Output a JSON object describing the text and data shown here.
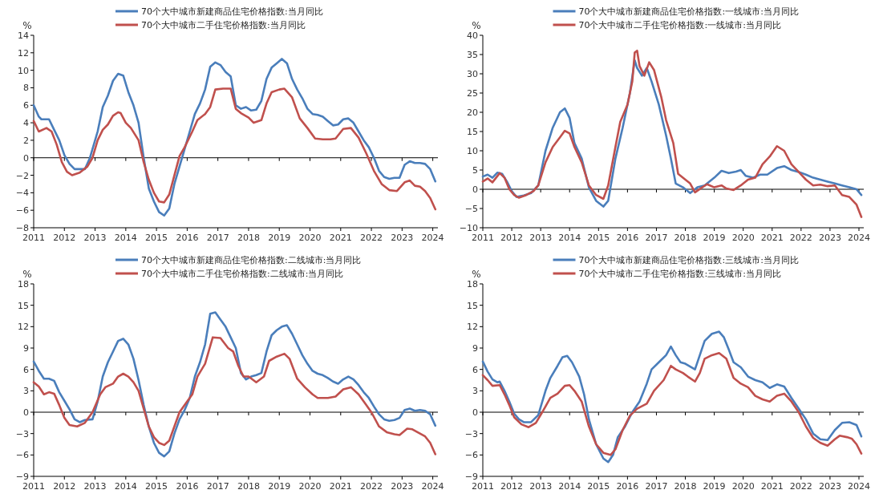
{
  "chart_data": [
    {
      "type": "line",
      "ylabel": "%",
      "legend": "top",
      "xlim": [
        "2011-01",
        "2024-03"
      ],
      "xticks": [
        "2011",
        "2012",
        "2013",
        "2014",
        "2015",
        "2016",
        "2017",
        "2018",
        "2019",
        "2020",
        "2021",
        "2022",
        "2023",
        "2024"
      ],
      "ylim": [
        -8,
        14
      ],
      "yticks": [
        -8,
        -6,
        -4,
        -2,
        0,
        2,
        4,
        6,
        8,
        10,
        12,
        14
      ],
      "series": [
        {
          "name": "70个大中城市新建商品住宅价格指数:当月同比",
          "color": "#4a7ebb",
          "x": [
            "2011-01",
            "2011-03",
            "2011-04",
            "2011-07",
            "2011-09",
            "2011-11",
            "2012-01",
            "2012-03",
            "2012-05",
            "2012-09",
            "2012-11",
            "2013-02",
            "2013-04",
            "2013-06",
            "2013-08",
            "2013-10",
            "2013-12",
            "2014-02",
            "2014-04",
            "2014-06",
            "2014-08",
            "2014-10",
            "2014-12",
            "2015-02",
            "2015-04",
            "2015-06",
            "2015-08",
            "2015-10",
            "2015-12",
            "2016-02",
            "2016-04",
            "2016-06",
            "2016-08",
            "2016-10",
            "2016-12",
            "2017-02",
            "2017-04",
            "2017-06",
            "2017-08",
            "2017-10",
            "2017-12",
            "2018-02",
            "2018-04",
            "2018-06",
            "2018-08",
            "2018-10",
            "2018-12",
            "2019-02",
            "2019-04",
            "2019-06",
            "2019-08",
            "2019-10",
            "2019-12",
            "2020-02",
            "2020-04",
            "2020-06",
            "2020-08",
            "2020-10",
            "2020-12",
            "2021-02",
            "2021-04",
            "2021-06",
            "2021-08",
            "2021-10",
            "2021-12",
            "2022-02",
            "2022-04",
            "2022-06",
            "2022-08",
            "2022-10",
            "2022-12",
            "2023-02",
            "2023-04",
            "2023-06",
            "2023-08",
            "2023-10",
            "2023-12",
            "2024-02"
          ],
          "values": [
            6.0,
            4.7,
            4.4,
            4.4,
            3.2,
            2.0,
            0.3,
            -0.7,
            -1.3,
            -1.3,
            0.0,
            3.0,
            5.8,
            7.1,
            8.8,
            9.6,
            9.4,
            7.5,
            6.0,
            4.0,
            0.0,
            -3.5,
            -5.0,
            -6.2,
            -6.6,
            -5.8,
            -3.0,
            -1.0,
            1.0,
            3.0,
            5.0,
            6.2,
            7.8,
            10.4,
            10.9,
            10.6,
            9.8,
            9.3,
            6.0,
            5.6,
            5.8,
            5.4,
            5.5,
            6.5,
            9.0,
            10.3,
            10.8,
            11.3,
            10.8,
            9.0,
            7.8,
            6.8,
            5.6,
            5.0,
            4.9,
            4.7,
            4.2,
            3.7,
            3.8,
            4.4,
            4.5,
            4.0,
            3.0,
            2.0,
            1.2,
            0.0,
            -1.5,
            -2.2,
            -2.4,
            -2.3,
            -2.3,
            -0.8,
            -0.4,
            -0.6,
            -0.6,
            -0.7,
            -1.3,
            -2.7
          ]
        },
        {
          "name": "70个大中城市二手住宅价格指数:当月同比",
          "color": "#c0504d",
          "x": [
            "2011-01",
            "2011-03",
            "2011-06",
            "2011-08",
            "2011-10",
            "2011-12",
            "2012-02",
            "2012-04",
            "2012-07",
            "2012-10",
            "2012-12",
            "2013-02",
            "2013-04",
            "2013-06",
            "2013-08",
            "2013-10",
            "2013-11",
            "2014-01",
            "2014-03",
            "2014-06",
            "2014-08",
            "2014-10",
            "2014-12",
            "2015-02",
            "2015-04",
            "2015-06",
            "2015-08",
            "2015-10",
            "2015-12",
            "2016-03",
            "2016-05",
            "2016-08",
            "2016-10",
            "2016-12",
            "2017-03",
            "2017-06",
            "2017-08",
            "2017-10",
            "2018-01",
            "2018-03",
            "2018-06",
            "2018-08",
            "2018-10",
            "2019-01",
            "2019-03",
            "2019-06",
            "2019-09",
            "2019-12",
            "2020-03",
            "2020-06",
            "2020-09",
            "2020-11",
            "2021-02",
            "2021-05",
            "2021-08",
            "2021-11",
            "2022-02",
            "2022-05",
            "2022-08",
            "2022-11",
            "2023-02",
            "2023-04",
            "2023-06",
            "2023-08",
            "2023-10",
            "2023-12",
            "2024-02"
          ],
          "values": [
            4.2,
            3.0,
            3.4,
            3.0,
            1.5,
            -0.5,
            -1.6,
            -2.0,
            -1.7,
            -1.0,
            0.0,
            2.0,
            3.2,
            3.8,
            4.8,
            5.2,
            5.1,
            4.0,
            3.4,
            2.0,
            -0.5,
            -2.5,
            -4.0,
            -5.0,
            -5.1,
            -4.2,
            -2.0,
            0.2,
            1.2,
            3.0,
            4.3,
            5.0,
            5.8,
            7.8,
            7.9,
            7.9,
            5.6,
            5.1,
            4.6,
            4.0,
            4.3,
            6.2,
            7.5,
            7.8,
            7.9,
            6.9,
            4.5,
            3.4,
            2.2,
            2.1,
            2.1,
            2.2,
            3.3,
            3.4,
            2.3,
            0.5,
            -1.5,
            -3.0,
            -3.7,
            -3.8,
            -2.8,
            -2.6,
            -3.2,
            -3.3,
            -3.8,
            -4.6,
            -5.9
          ]
        }
      ]
    },
    {
      "type": "line",
      "ylabel": "%",
      "legend": "top",
      "xlim": [
        "2011-01",
        "2024-03"
      ],
      "xticks": [
        "2011",
        "2012",
        "2013",
        "2014",
        "2015",
        "2016",
        "2017",
        "2018",
        "2019",
        "2020",
        "2021",
        "2022",
        "2023",
        "2024"
      ],
      "ylim": [
        -10,
        40
      ],
      "yticks": [
        -10,
        -5,
        0,
        5,
        10,
        15,
        20,
        25,
        30,
        35,
        40
      ],
      "series": [
        {
          "name": "70个大中城市新建商品住宅价格指数:一线城市:当月同比",
          "color": "#4a7ebb",
          "x": [
            "2011-01",
            "2011-03",
            "2011-05",
            "2011-07",
            "2011-09",
            "2011-11",
            "2012-01",
            "2012-03",
            "2012-06",
            "2012-09",
            "2012-12",
            "2013-03",
            "2013-06",
            "2013-09",
            "2013-11",
            "2014-01",
            "2014-03",
            "2014-06",
            "2014-09",
            "2014-12",
            "2015-03",
            "2015-05",
            "2015-08",
            "2015-11",
            "2016-02",
            "2016-04",
            "2016-05",
            "2016-07",
            "2016-09",
            "2016-11",
            "2017-02",
            "2017-05",
            "2017-07",
            "2017-09",
            "2017-12",
            "2018-03",
            "2018-06",
            "2018-09",
            "2019-01",
            "2019-04",
            "2019-07",
            "2019-10",
            "2019-12",
            "2020-02",
            "2020-05",
            "2020-08",
            "2020-11",
            "2021-03",
            "2021-06",
            "2021-09",
            "2021-12",
            "2022-03",
            "2022-06",
            "2022-09",
            "2022-12",
            "2023-03",
            "2023-06",
            "2023-09",
            "2023-12",
            "2024-02"
          ],
          "values": [
            3.3,
            3.8,
            3.0,
            4.3,
            4.0,
            2.0,
            -0.5,
            -2.0,
            -1.6,
            -1.0,
            1.0,
            10.0,
            16.0,
            20.0,
            21.0,
            18.5,
            12.0,
            8.0,
            0.5,
            -3.0,
            -4.5,
            -3.0,
            8.0,
            16.0,
            25.0,
            33.5,
            31.5,
            29.5,
            31.5,
            28.0,
            22.0,
            14.0,
            8.0,
            1.5,
            0.5,
            -1.0,
            0.5,
            1.0,
            3.0,
            4.8,
            4.2,
            4.6,
            5.0,
            3.5,
            3.0,
            3.8,
            3.8,
            5.5,
            6.0,
            5.0,
            4.5,
            3.8,
            3.0,
            2.5,
            2.0,
            1.5,
            1.0,
            0.5,
            0.0,
            -1.5
          ]
        },
        {
          "name": "70个大中城市二手住宅价格指数:一线城市:当月同比",
          "color": "#c0504d",
          "x": [
            "2011-01",
            "2011-03",
            "2011-05",
            "2011-08",
            "2011-10",
            "2011-12",
            "2012-02",
            "2012-04",
            "2012-07",
            "2012-10",
            "2012-12",
            "2013-03",
            "2013-06",
            "2013-09",
            "2013-11",
            "2014-01",
            "2014-03",
            "2014-06",
            "2014-09",
            "2014-12",
            "2015-03",
            "2015-05",
            "2015-08",
            "2015-10",
            "2016-01",
            "2016-03",
            "2016-04",
            "2016-05",
            "2016-06",
            "2016-08",
            "2016-10",
            "2016-12",
            "2017-03",
            "2017-05",
            "2017-08",
            "2017-10",
            "2018-01",
            "2018-03",
            "2018-05",
            "2018-08",
            "2018-10",
            "2019-01",
            "2019-04",
            "2019-06",
            "2019-09",
            "2019-12",
            "2020-03",
            "2020-06",
            "2020-09",
            "2020-12",
            "2021-03",
            "2021-06",
            "2021-09",
            "2021-12",
            "2022-03",
            "2022-06",
            "2022-09",
            "2022-12",
            "2023-03",
            "2023-06",
            "2023-09",
            "2023-12",
            "2024-02"
          ],
          "values": [
            2.0,
            2.8,
            1.8,
            4.2,
            3.0,
            0.0,
            -1.5,
            -2.2,
            -1.5,
            -0.5,
            1.0,
            7.0,
            11.0,
            13.5,
            15.2,
            14.5,
            11.0,
            7.0,
            1.0,
            -1.5,
            -2.5,
            1.0,
            11.0,
            17.5,
            22.0,
            28.0,
            35.5,
            36.0,
            32.0,
            29.5,
            33.0,
            31.0,
            24.0,
            18.0,
            12.0,
            4.0,
            2.5,
            1.5,
            -0.8,
            0.5,
            1.3,
            0.5,
            1.0,
            0.2,
            -0.2,
            1.0,
            2.5,
            3.0,
            6.5,
            8.5,
            11.2,
            10.0,
            6.5,
            4.5,
            2.5,
            1.0,
            1.2,
            0.8,
            1.0,
            -1.5,
            -2.0,
            -4.0,
            -7.2
          ]
        }
      ]
    },
    {
      "type": "line",
      "ylabel": "%",
      "legend": "top",
      "xlim": [
        "2011-01",
        "2024-03"
      ],
      "xticks": [
        "2011",
        "2012",
        "2013",
        "2014",
        "2015",
        "2016",
        "2017",
        "2018",
        "2019",
        "2020",
        "2021",
        "2022",
        "2023",
        "2024"
      ],
      "ylim": [
        -9,
        18
      ],
      "yticks": [
        -9,
        -6,
        -3,
        0,
        3,
        6,
        9,
        12,
        15,
        18
      ],
      "series": [
        {
          "name": "70个大中城市新建商品住宅价格指数:二线城市:当月同比",
          "color": "#4a7ebb",
          "x": [
            "2011-01",
            "2011-03",
            "2011-05",
            "2011-07",
            "2011-09",
            "2011-11",
            "2012-01",
            "2012-03",
            "2012-05",
            "2012-07",
            "2012-09",
            "2012-12",
            "2013-02",
            "2013-04",
            "2013-06",
            "2013-08",
            "2013-10",
            "2013-12",
            "2014-02",
            "2014-04",
            "2014-06",
            "2014-08",
            "2014-10",
            "2014-12",
            "2015-02",
            "2015-04",
            "2015-06",
            "2015-08",
            "2015-10",
            "2015-12",
            "2016-02",
            "2016-04",
            "2016-06",
            "2016-08",
            "2016-10",
            "2016-12",
            "2017-02",
            "2017-04",
            "2017-06",
            "2017-08",
            "2017-10",
            "2017-12",
            "2018-02",
            "2018-04",
            "2018-06",
            "2018-08",
            "2018-10",
            "2018-12",
            "2019-02",
            "2019-04",
            "2019-06",
            "2019-08",
            "2019-10",
            "2019-12",
            "2020-02",
            "2020-04",
            "2020-06",
            "2020-08",
            "2020-10",
            "2020-12",
            "2021-02",
            "2021-04",
            "2021-06",
            "2021-08",
            "2021-10",
            "2021-12",
            "2022-02",
            "2022-04",
            "2022-06",
            "2022-08",
            "2022-10",
            "2022-12",
            "2023-02",
            "2023-04",
            "2023-06",
            "2023-08",
            "2023-10",
            "2023-12",
            "2024-02"
          ],
          "values": [
            7.1,
            5.8,
            4.7,
            4.7,
            4.4,
            2.8,
            1.6,
            0.4,
            -1.0,
            -1.4,
            -1.1,
            -1.0,
            1.5,
            5.0,
            7.0,
            8.5,
            10.0,
            10.3,
            9.5,
            7.5,
            4.5,
            1.0,
            -2.0,
            -4.3,
            -5.7,
            -6.2,
            -5.5,
            -3.0,
            -1.0,
            0.3,
            2.0,
            5.0,
            7.0,
            9.5,
            13.8,
            14.0,
            13.0,
            12.0,
            10.5,
            9.0,
            5.5,
            4.6,
            5.0,
            5.2,
            5.5,
            8.5,
            10.8,
            11.5,
            12.0,
            12.2,
            11.0,
            9.5,
            8.0,
            6.8,
            5.8,
            5.4,
            5.2,
            4.8,
            4.3,
            4.0,
            4.6,
            5.0,
            4.6,
            3.8,
            2.8,
            2.0,
            0.8,
            -0.3,
            -1.0,
            -1.2,
            -1.1,
            -0.8,
            0.3,
            0.5,
            0.2,
            0.3,
            0.2,
            -0.3,
            -1.9
          ]
        },
        {
          "name": "70个大中城市二手住宅价格指数:二线城市:当月同比",
          "color": "#c0504d",
          "x": [
            "2011-01",
            "2011-03",
            "2011-05",
            "2011-07",
            "2011-09",
            "2011-11",
            "2012-01",
            "2012-03",
            "2012-06",
            "2012-09",
            "2012-12",
            "2013-03",
            "2013-05",
            "2013-08",
            "2013-10",
            "2013-12",
            "2014-02",
            "2014-04",
            "2014-06",
            "2014-08",
            "2014-10",
            "2014-12",
            "2015-02",
            "2015-04",
            "2015-06",
            "2015-08",
            "2015-10",
            "2015-12",
            "2016-03",
            "2016-05",
            "2016-08",
            "2016-11",
            "2017-02",
            "2017-05",
            "2017-07",
            "2017-09",
            "2017-11",
            "2018-01",
            "2018-04",
            "2018-07",
            "2018-09",
            "2018-12",
            "2019-03",
            "2019-05",
            "2019-08",
            "2019-11",
            "2020-02",
            "2020-04",
            "2020-08",
            "2020-11",
            "2021-02",
            "2021-05",
            "2021-08",
            "2021-11",
            "2022-01",
            "2022-04",
            "2022-07",
            "2022-10",
            "2022-12",
            "2023-03",
            "2023-05",
            "2023-08",
            "2023-10",
            "2023-12",
            "2024-02"
          ],
          "values": [
            4.2,
            3.6,
            2.5,
            2.8,
            2.6,
            1.0,
            -0.8,
            -1.8,
            -2.0,
            -1.5,
            0.0,
            2.5,
            3.5,
            4.0,
            5.0,
            5.4,
            5.0,
            4.2,
            3.0,
            0.5,
            -2.0,
            -3.5,
            -4.3,
            -4.6,
            -4.0,
            -2.0,
            0.0,
            1.0,
            2.5,
            5.0,
            6.8,
            10.5,
            10.4,
            9.0,
            8.5,
            6.5,
            5.0,
            5.0,
            4.2,
            5.0,
            7.2,
            7.8,
            8.2,
            7.5,
            4.7,
            3.5,
            2.5,
            2.0,
            2.0,
            2.2,
            3.2,
            3.5,
            2.5,
            1.0,
            0.0,
            -2.0,
            -2.8,
            -3.1,
            -3.2,
            -2.3,
            -2.4,
            -3.0,
            -3.4,
            -4.3,
            -5.9
          ]
        }
      ]
    },
    {
      "type": "line",
      "ylabel": "%",
      "legend": "top",
      "xlim": [
        "2011-01",
        "2024-03"
      ],
      "xticks": [
        "2011",
        "2012",
        "2013",
        "2014",
        "2015",
        "2016",
        "2017",
        "2018",
        "2019",
        "2020",
        "2021",
        "2022",
        "2023",
        "2024"
      ],
      "ylim": [
        -9,
        18
      ],
      "yticks": [
        -9,
        -6,
        -3,
        0,
        3,
        6,
        9,
        12,
        15,
        18
      ],
      "series": [
        {
          "name": "70个大中城市新建商品住宅价格指数:三线城市:当月同比",
          "color": "#4a7ebb",
          "x": [
            "2011-01",
            "2011-03",
            "2011-05",
            "2011-07",
            "2011-08",
            "2011-10",
            "2011-12",
            "2012-02",
            "2012-04",
            "2012-06",
            "2012-09",
            "2012-12",
            "2013-03",
            "2013-05",
            "2013-08",
            "2013-10",
            "2013-12",
            "2014-02",
            "2014-05",
            "2014-07",
            "2014-09",
            "2014-12",
            "2015-03",
            "2015-05",
            "2015-07",
            "2015-09",
            "2015-12",
            "2016-03",
            "2016-06",
            "2016-09",
            "2016-11",
            "2017-02",
            "2017-05",
            "2017-07",
            "2017-09",
            "2017-11",
            "2018-01",
            "2018-03",
            "2018-05",
            "2018-07",
            "2018-09",
            "2018-12",
            "2019-03",
            "2019-05",
            "2019-07",
            "2019-09",
            "2019-12",
            "2020-03",
            "2020-06",
            "2020-09",
            "2020-12",
            "2021-03",
            "2021-06",
            "2021-09",
            "2021-12",
            "2022-03",
            "2022-06",
            "2022-09",
            "2022-12",
            "2023-03",
            "2023-06",
            "2023-09",
            "2023-12",
            "2024-02"
          ],
          "values": [
            7.1,
            5.7,
            4.6,
            4.2,
            4.3,
            3.0,
            1.5,
            -0.2,
            -1.0,
            -1.4,
            -1.4,
            -0.4,
            3.0,
            4.8,
            6.5,
            7.7,
            7.9,
            7.0,
            5.0,
            2.5,
            -1.0,
            -4.5,
            -6.5,
            -7.0,
            -6.0,
            -3.5,
            -2.0,
            0.0,
            1.5,
            4.0,
            6.0,
            7.0,
            8.0,
            9.2,
            8.0,
            7.0,
            6.8,
            6.4,
            6.0,
            8.0,
            10.0,
            11.0,
            11.3,
            10.5,
            8.8,
            7.0,
            6.3,
            5.0,
            4.5,
            4.2,
            3.4,
            3.9,
            3.6,
            2.0,
            0.5,
            -1.0,
            -3.0,
            -3.8,
            -3.9,
            -2.5,
            -1.5,
            -1.4,
            -1.8,
            -3.4
          ]
        },
        {
          "name": "70个大中城市二手住宅价格指数:三线城市:当月同比",
          "color": "#c0504d",
          "x": [
            "2011-01",
            "2011-03",
            "2011-05",
            "2011-08",
            "2011-10",
            "2011-12",
            "2012-02",
            "2012-05",
            "2012-08",
            "2012-11",
            "2013-02",
            "2013-05",
            "2013-08",
            "2013-11",
            "2014-01",
            "2014-03",
            "2014-06",
            "2014-09",
            "2014-12",
            "2015-03",
            "2015-06",
            "2015-08",
            "2015-11",
            "2016-02",
            "2016-05",
            "2016-09",
            "2016-12",
            "2017-04",
            "2017-07",
            "2017-09",
            "2017-12",
            "2018-02",
            "2018-05",
            "2018-07",
            "2018-09",
            "2018-12",
            "2019-03",
            "2019-06",
            "2019-09",
            "2019-12",
            "2020-03",
            "2020-06",
            "2020-09",
            "2020-12",
            "2021-03",
            "2021-06",
            "2021-09",
            "2021-12",
            "2022-03",
            "2022-06",
            "2022-09",
            "2022-12",
            "2023-03",
            "2023-05",
            "2023-08",
            "2023-10",
            "2023-12",
            "2024-02"
          ],
          "values": [
            5.2,
            4.5,
            3.7,
            3.8,
            2.5,
            1.0,
            -0.7,
            -1.7,
            -2.1,
            -1.5,
            0.2,
            2.0,
            2.6,
            3.7,
            3.8,
            3.0,
            1.5,
            -2.0,
            -4.5,
            -5.7,
            -6.0,
            -5.2,
            -2.5,
            -0.5,
            0.5,
            1.2,
            3.0,
            4.5,
            6.5,
            6.0,
            5.5,
            5.0,
            4.3,
            5.5,
            7.5,
            8.0,
            8.3,
            7.5,
            4.8,
            4.0,
            3.5,
            2.3,
            1.8,
            1.5,
            2.3,
            2.6,
            1.5,
            0.0,
            -2.0,
            -3.6,
            -4.3,
            -4.7,
            -3.8,
            -3.3,
            -3.5,
            -3.7,
            -4.5,
            -5.8
          ]
        }
      ]
    }
  ]
}
